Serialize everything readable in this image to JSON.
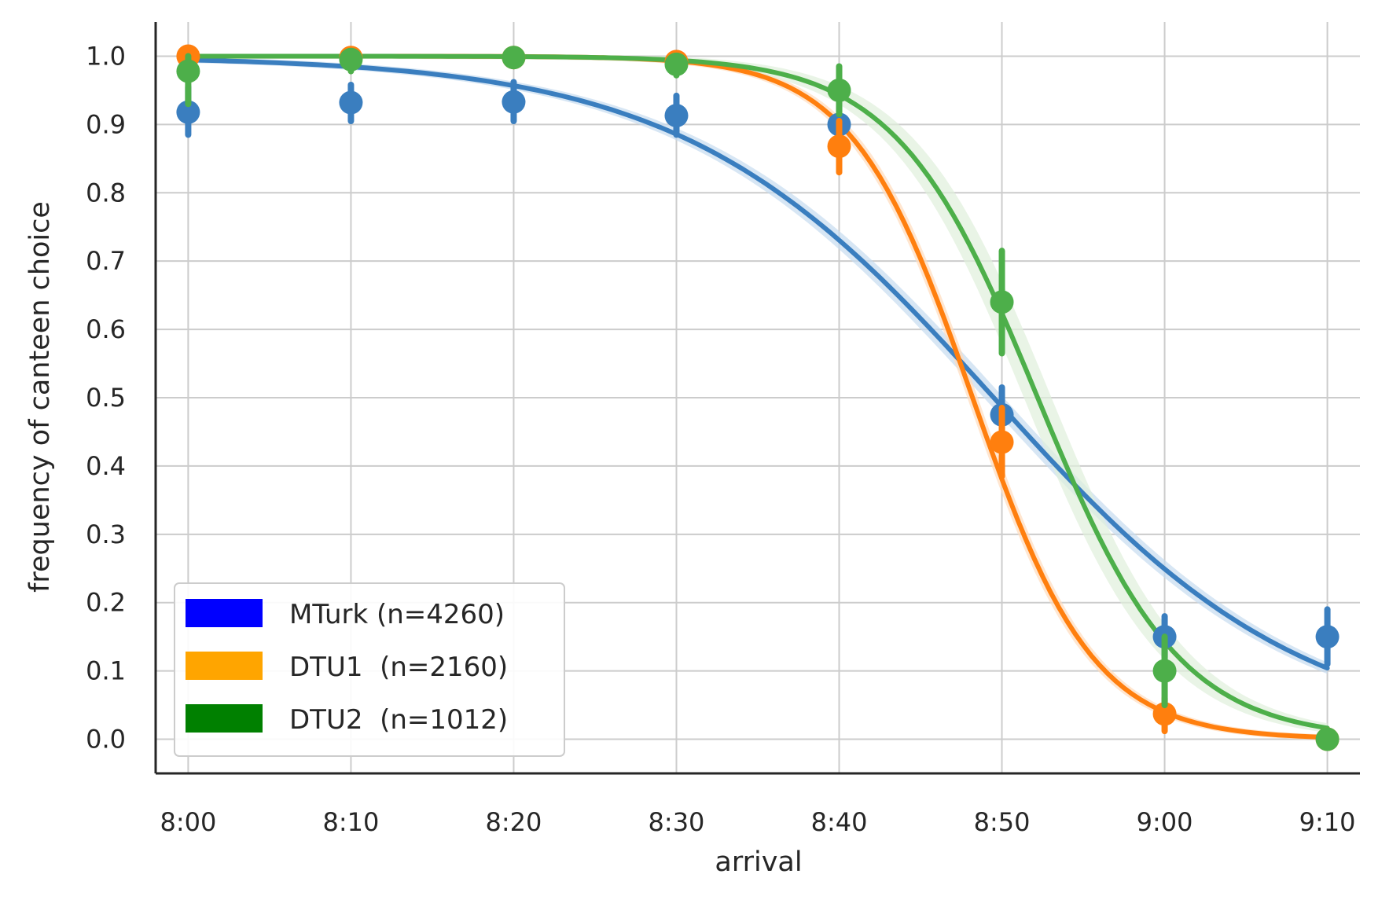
{
  "chart_data": {
    "type": "line",
    "xlabel": "arrival",
    "ylabel": "frequency of canteen choice",
    "x_ticks": [
      "8:00",
      "8:10",
      "8:20",
      "8:30",
      "8:40",
      "8:50",
      "9:00",
      "9:10"
    ],
    "x_range_minutes": [
      -2,
      72
    ],
    "y_ticks": [
      "0.0",
      "0.1",
      "0.2",
      "0.3",
      "0.4",
      "0.5",
      "0.6",
      "0.7",
      "0.8",
      "0.9",
      "1.0"
    ],
    "ylim": [
      -0.05,
      1.05
    ],
    "grid": true,
    "legend_position": "lower-left",
    "legend": [
      {
        "label": "MTurk (n=4260)",
        "color": "#0000ff"
      },
      {
        "label": "DTU1  (n=2160)",
        "color": "#ffa500"
      },
      {
        "label": "DTU2  (n=1012)",
        "color": "#008000"
      }
    ],
    "series": [
      {
        "color": "#3a7ebf",
        "band_color": "#c6dbef",
        "points": [
          {
            "x": "8:00",
            "y": 0.918,
            "lo": 0.885,
            "hi": 0.955
          },
          {
            "x": "8:10",
            "y": 0.932,
            "lo": 0.905,
            "hi": 0.958
          },
          {
            "x": "8:20",
            "y": 0.933,
            "lo": 0.905,
            "hi": 0.962
          },
          {
            "x": "8:30",
            "y": 0.913,
            "lo": 0.885,
            "hi": 0.942
          },
          {
            "x": "8:40",
            "y": 0.9,
            "lo": 0.875,
            "hi": 0.925
          },
          {
            "x": "8:50",
            "y": 0.475,
            "lo": 0.435,
            "hi": 0.515
          },
          {
            "x": "9:00",
            "y": 0.15,
            "lo": 0.12,
            "hi": 0.18
          },
          {
            "x": "9:10",
            "y": 0.15,
            "lo": 0.11,
            "hi": 0.19
          }
        ],
        "fit": {
          "midpoint": "8:49.5",
          "slope_per_min": 0.105,
          "band": 0.012
        }
      },
      {
        "color": "#ff7f0e",
        "band_color": "#ffdcbc",
        "points": [
          {
            "x": "8:00",
            "y": 1.0,
            "lo": 0.995,
            "hi": 1.0
          },
          {
            "x": "8:10",
            "y": 0.998,
            "lo": 0.99,
            "hi": 1.0
          },
          {
            "x": "8:20",
            "y": 0.998,
            "lo": 0.99,
            "hi": 1.0
          },
          {
            "x": "8:30",
            "y": 0.992,
            "lo": 0.98,
            "hi": 1.0
          },
          {
            "x": "8:40",
            "y": 0.868,
            "lo": 0.83,
            "hi": 0.905
          },
          {
            "x": "8:50",
            "y": 0.435,
            "lo": 0.385,
            "hi": 0.485
          },
          {
            "x": "9:00",
            "y": 0.037,
            "lo": 0.012,
            "hi": 0.06
          },
          {
            "x": "9:10",
            "y": 0.0,
            "lo": 0.0,
            "hi": 0.005
          }
        ],
        "fit": {
          "midpoint": "8:48.2",
          "slope_per_min": 0.27,
          "band": 0.018
        }
      },
      {
        "color": "#4daf4a",
        "band_color": "#dff0db",
        "points": [
          {
            "x": "8:00",
            "y": 0.978,
            "lo": 0.93,
            "hi": 1.0
          },
          {
            "x": "8:10",
            "y": 0.995,
            "lo": 0.978,
            "hi": 1.0
          },
          {
            "x": "8:20",
            "y": 0.998,
            "lo": 0.99,
            "hi": 1.0
          },
          {
            "x": "8:30",
            "y": 0.988,
            "lo": 0.972,
            "hi": 1.0
          },
          {
            "x": "8:40",
            "y": 0.95,
            "lo": 0.915,
            "hi": 0.985
          },
          {
            "x": "8:50",
            "y": 0.64,
            "lo": 0.565,
            "hi": 0.715
          },
          {
            "x": "9:00",
            "y": 0.1,
            "lo": 0.05,
            "hi": 0.15
          },
          {
            "x": "9:10",
            "y": 0.0,
            "lo": 0.0,
            "hi": 0.005
          }
        ],
        "fit": {
          "midpoint": "8:52.2",
          "slope_per_min": 0.23,
          "band": 0.045
        }
      }
    ]
  }
}
